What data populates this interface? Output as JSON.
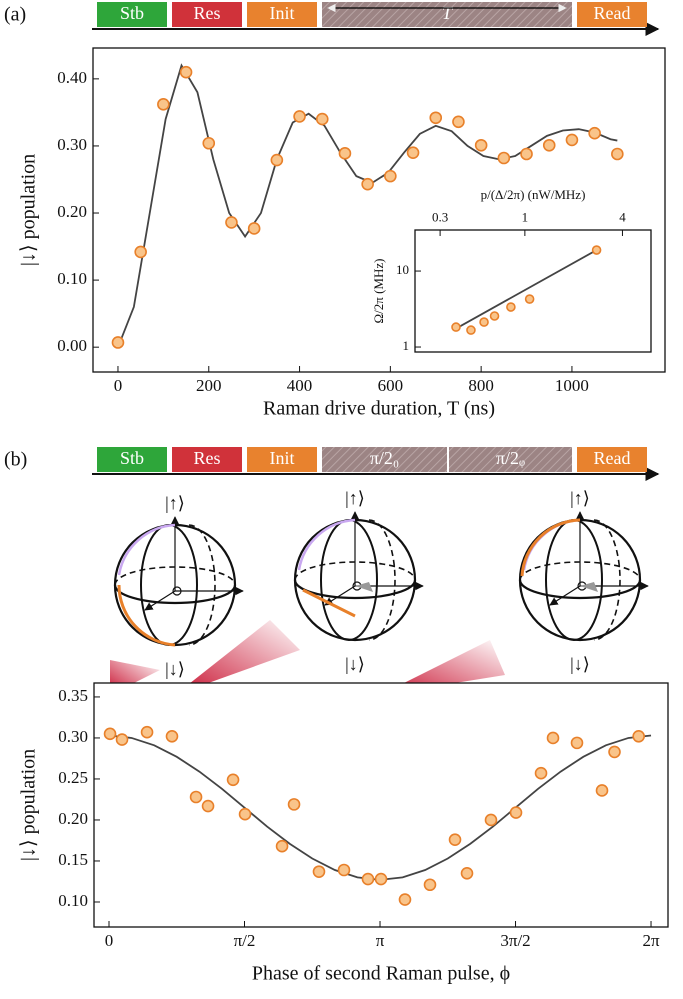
{
  "panel_labels": [
    "(a)",
    "(b)"
  ],
  "sequence_a": [
    "Stb",
    "Res",
    "Init",
    "T",
    "Read"
  ],
  "sequence_b": [
    "Stb",
    "Res",
    "Init",
    "π/2₀",
    "π/2ᵩ",
    "Read"
  ],
  "spheres": [
    {
      "top": "|↑⟩",
      "bottom": "|↓⟩"
    },
    {
      "top": "|↑⟩",
      "bottom": "|↓⟩"
    },
    {
      "top": "|↑⟩",
      "bottom": "|↓⟩"
    }
  ],
  "chart_data": [
    {
      "type": "scatter",
      "x_label": "Raman drive duration, T (ns)",
      "y_label": "|↓⟩ population",
      "xlim": [
        -55,
        1205
      ],
      "ylim": [
        -0.037,
        0.446
      ],
      "xticks": [
        0,
        200,
        400,
        600,
        800,
        1000
      ],
      "yticks": [
        {
          "value": 0,
          "label": "0.00"
        },
        {
          "value": 0.1,
          "label": "0.10"
        },
        {
          "value": 0.2,
          "label": "0.20"
        },
        {
          "value": 0.3,
          "label": "0.30"
        },
        {
          "value": 0.4,
          "label": "0.40"
        }
      ],
      "series": [
        {
          "mode": "line",
          "color": "#444444",
          "x": [
            0,
            35,
            70,
            105,
            140,
            175,
            210,
            245,
            280,
            315,
            350,
            385,
            420,
            455,
            490,
            525,
            560,
            595,
            630,
            665,
            700,
            735,
            770,
            805,
            840,
            875,
            910,
            945,
            980,
            1015,
            1050,
            1085,
            1100
          ],
          "values": [
            0.0,
            0.06,
            0.2,
            0.34,
            0.42,
            0.38,
            0.28,
            0.2,
            0.165,
            0.2,
            0.28,
            0.335,
            0.348,
            0.33,
            0.29,
            0.255,
            0.245,
            0.26,
            0.29,
            0.318,
            0.33,
            0.322,
            0.3,
            0.285,
            0.28,
            0.285,
            0.3,
            0.315,
            0.323,
            0.325,
            0.32,
            0.31,
            0.308
          ]
        },
        {
          "mode": "markers",
          "color": "#e8802a",
          "x": [
            0,
            50,
            100,
            150,
            200,
            250,
            300,
            350,
            400,
            450,
            500,
            550,
            600,
            650,
            700,
            750,
            800,
            850,
            900,
            950,
            1000,
            1050,
            1100
          ],
          "values": [
            0.007,
            0.142,
            0.362,
            0.41,
            0.304,
            0.186,
            0.177,
            0.279,
            0.344,
            0.34,
            0.289,
            0.243,
            0.255,
            0.29,
            0.342,
            0.336,
            0.301,
            0.282,
            0.288,
            0.301,
            0.309,
            0.319,
            0.288
          ]
        }
      ]
    },
    {
      "type": "scatter",
      "x_label": "p/(Δ/2π) (nW/MHz)",
      "y_label": "Ω/2π (MHz)",
      "xscale": "log",
      "yscale": "log",
      "xlim": [
        0.21,
        6
      ],
      "ylim": [
        0.86,
        34.7
      ],
      "xticks": [
        0.3,
        1,
        4
      ],
      "yticks": [
        1,
        10
      ],
      "series": [
        {
          "mode": "line",
          "color": "#444444",
          "x": [
            0.376,
            2.77
          ],
          "values": [
            1.75,
            18.9
          ]
        },
        {
          "mode": "markers",
          "color": "#e8802a",
          "x": [
            0.376,
            0.465,
            0.56,
            0.65,
            0.82,
            1.07,
            2.77
          ],
          "values": [
            1.83,
            1.67,
            2.13,
            2.56,
            3.36,
            4.28,
            18.9
          ]
        }
      ]
    },
    {
      "type": "scatter",
      "x_label": "Phase of second Raman pulse, ϕ",
      "y_label": "|↓⟩ population",
      "xlim": [
        -0.174,
        6.48
      ],
      "ylim": [
        0.0695,
        0.367
      ],
      "xticks": [
        0,
        {
          "value": 1.5708,
          "label": "π/2"
        },
        {
          "value": 3.1416,
          "label": "π"
        },
        {
          "value": 4.7124,
          "label": "3π/2"
        },
        {
          "value": 6.2832,
          "label": "2π"
        }
      ],
      "yticks": [
        {
          "value": 0.1,
          "label": "0.10"
        },
        {
          "value": 0.15,
          "label": "0.15"
        },
        {
          "value": 0.2,
          "label": "0.20"
        },
        {
          "value": 0.25,
          "label": "0.25"
        },
        {
          "value": 0.3,
          "label": "0.30"
        },
        {
          "value": 0.35,
          "label": "0.35"
        }
      ],
      "series": [
        {
          "mode": "line",
          "color": "#444444",
          "x": [
            0,
            0.2618,
            0.5236,
            0.7854,
            1.0472,
            1.309,
            1.5708,
            1.8326,
            2.0944,
            2.3562,
            2.618,
            2.8798,
            3.1416,
            3.4034,
            3.6652,
            3.927,
            4.1888,
            4.4506,
            4.7124,
            4.9742,
            5.236,
            5.4978,
            5.7596,
            6.0214,
            6.2832
          ],
          "values": [
            0.303,
            0.3,
            0.291,
            0.277,
            0.259,
            0.238,
            0.215,
            0.192,
            0.171,
            0.153,
            0.139,
            0.13,
            0.127,
            0.13,
            0.139,
            0.153,
            0.171,
            0.192,
            0.215,
            0.238,
            0.259,
            0.277,
            0.291,
            0.3,
            0.303
          ]
        },
        {
          "mode": "markers",
          "color": "#e8802a",
          "x": [
            0.012,
            0.151,
            0.441,
            0.73,
            1.009,
            1.148,
            1.438,
            1.577,
            2.006,
            2.145,
            2.434,
            2.724,
            3.002,
            3.153,
            3.431,
            3.721,
            4.011,
            4.15,
            4.428,
            4.718,
            5.008,
            5.147,
            5.425,
            5.715,
            5.86,
            6.14
          ],
          "values": [
            0.305,
            0.298,
            0.307,
            0.302,
            0.228,
            0.217,
            0.249,
            0.207,
            0.168,
            0.219,
            0.137,
            0.139,
            0.128,
            0.128,
            0.103,
            0.121,
            0.176,
            0.135,
            0.2,
            0.209,
            0.257,
            0.3,
            0.294,
            0.236,
            0.283,
            0.302
          ]
        }
      ]
    }
  ]
}
